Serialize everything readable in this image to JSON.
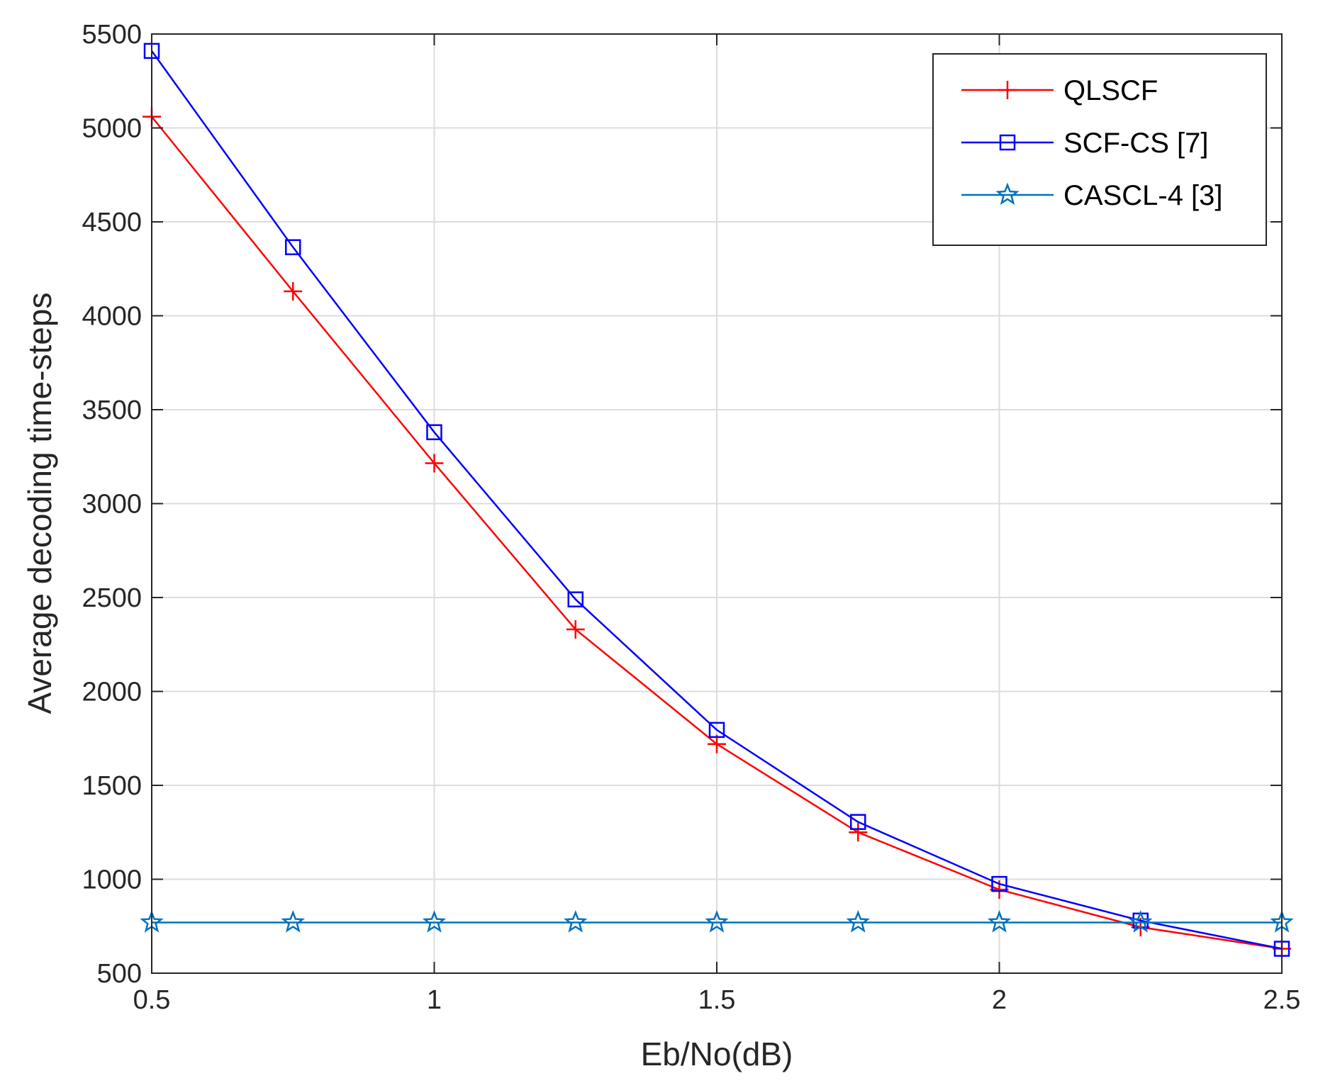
{
  "chart_data": {
    "type": "line",
    "title": "",
    "xlabel": "Eb/No(dB)",
    "ylabel": "Average decoding time-steps",
    "xlim": [
      0.5,
      2.5
    ],
    "ylim": [
      500,
      5500
    ],
    "xticks": [
      0.5,
      1,
      1.5,
      2,
      2.5
    ],
    "xtick_labels": [
      "0.5",
      "1",
      "1.5",
      "2",
      "2.5"
    ],
    "yticks": [
      500,
      1000,
      1500,
      2000,
      2500,
      3000,
      3500,
      4000,
      4500,
      5000,
      5500
    ],
    "ytick_labels": [
      "500",
      "1000",
      "1500",
      "2000",
      "2500",
      "3000",
      "3500",
      "4000",
      "4500",
      "5000",
      "5500"
    ],
    "grid": true,
    "legend_position": "top-right",
    "x": [
      0.5,
      0.75,
      1.0,
      1.25,
      1.5,
      1.75,
      2.0,
      2.25,
      2.5
    ],
    "series": [
      {
        "name": "QLSCF",
        "color": "#ff0000",
        "marker": "plus",
        "values": [
          5060,
          4130,
          3215,
          2330,
          1720,
          1250,
          945,
          745,
          630
        ]
      },
      {
        "name": "SCF-CS [7]",
        "color": "#0000ff",
        "marker": "square",
        "values": [
          5410,
          4365,
          3380,
          2490,
          1795,
          1305,
          975,
          780,
          630
        ]
      },
      {
        "name": "CASCL-4 [3]",
        "color": "#0072bd",
        "marker": "star",
        "values": [
          770,
          770,
          770,
          770,
          770,
          770,
          770,
          770,
          770
        ]
      }
    ]
  }
}
